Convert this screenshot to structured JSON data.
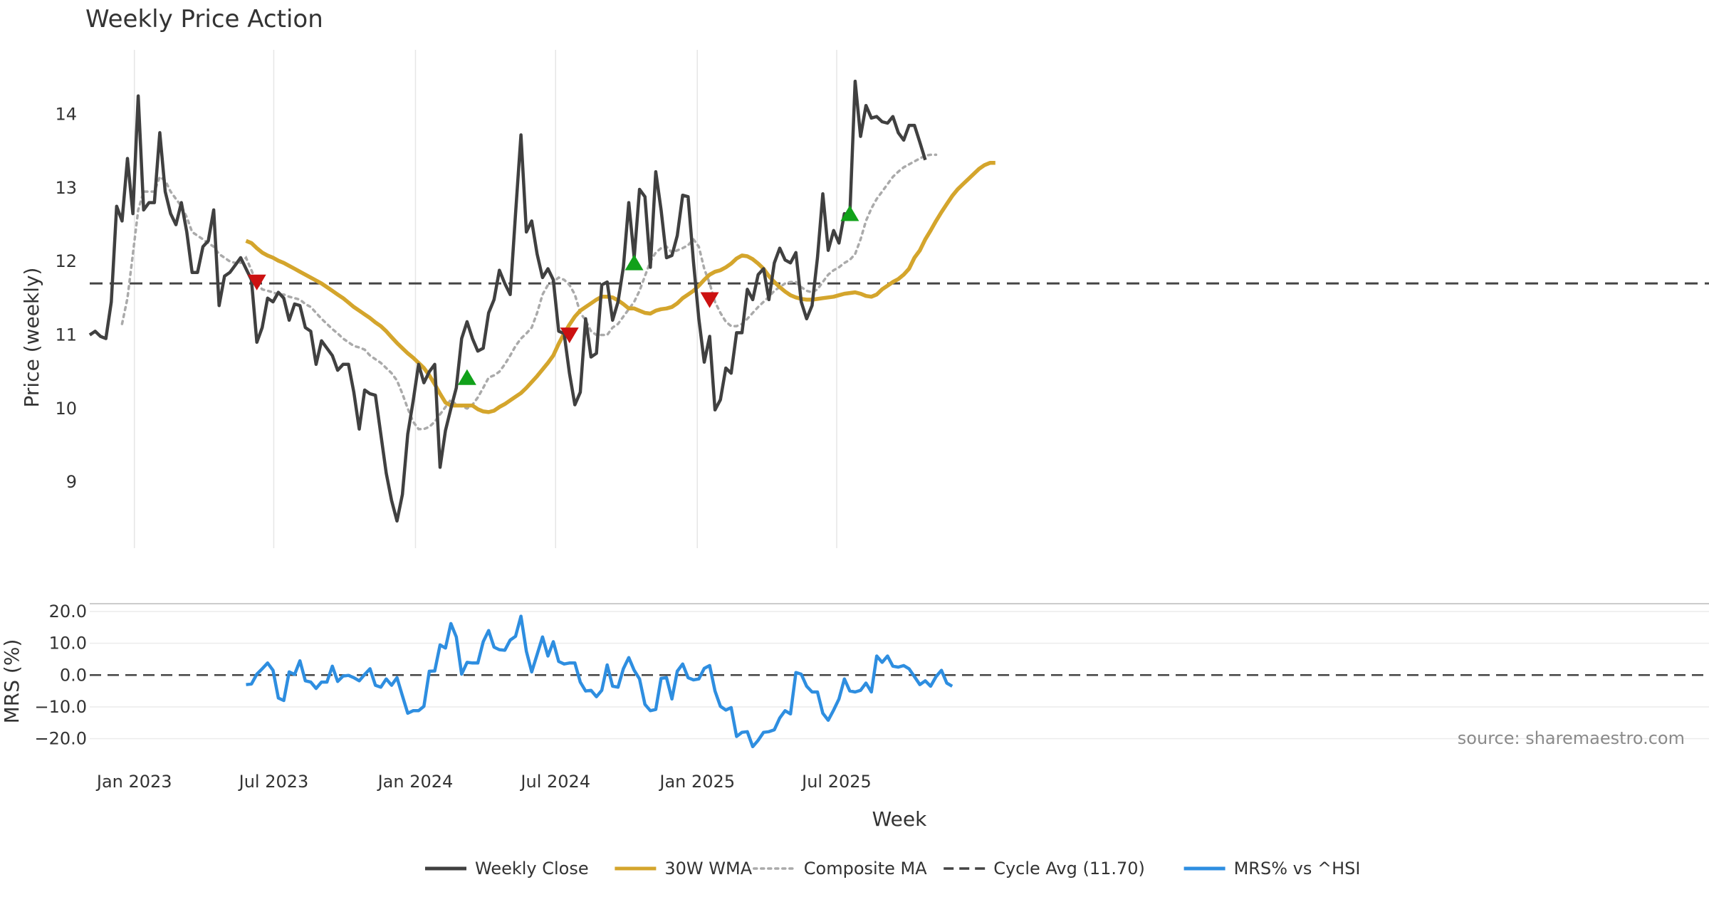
{
  "chart_data": [
    {
      "type": "line",
      "title": "Weekly Price Action",
      "xlabel": "",
      "ylabel": "Price (weekly)",
      "ylim": [
        8.1,
        14.8
      ],
      "yticks": [
        9,
        10,
        11,
        12,
        13,
        14
      ],
      "grid": "vertical",
      "x_start": "2022-11-04",
      "x_step_days": 7,
      "series": [
        {
          "name": "Weekly Close",
          "color": "#404040",
          "values": [
            11.0,
            11.05,
            10.98,
            10.95,
            11.45,
            12.75,
            12.55,
            13.4,
            12.65,
            14.25,
            12.7,
            12.8,
            12.8,
            13.75,
            12.95,
            12.65,
            12.5,
            12.8,
            12.4,
            11.85,
            11.85,
            12.2,
            12.28,
            12.7,
            11.4,
            11.8,
            11.85,
            11.95,
            12.05,
            11.9,
            11.75,
            10.9,
            11.1,
            11.5,
            11.45,
            11.58,
            11.5,
            11.2,
            11.42,
            11.4,
            11.1,
            11.05,
            10.6,
            10.92,
            10.82,
            10.72,
            10.52,
            10.6,
            10.6,
            10.22,
            9.72,
            10.25,
            10.2,
            10.18,
            9.65,
            9.12,
            8.75,
            8.47,
            8.83,
            9.65,
            10.1,
            10.6,
            10.35,
            10.5,
            10.6,
            9.2,
            9.7,
            10.0,
            10.28,
            10.95,
            11.18,
            10.95,
            10.78,
            10.82,
            11.3,
            11.48,
            11.88,
            11.7,
            11.55,
            12.65,
            13.72,
            12.4,
            12.55,
            12.1,
            11.78,
            11.9,
            11.75,
            11.05,
            11.02,
            10.48,
            10.05,
            10.22,
            11.22,
            10.7,
            10.75,
            11.68,
            11.72,
            11.2,
            11.45,
            11.92,
            12.8,
            12.05,
            12.98,
            12.88,
            11.92,
            13.22,
            12.7,
            12.05,
            12.08,
            12.35,
            12.9,
            12.88,
            12.0,
            11.22,
            10.63,
            10.98,
            9.98,
            10.12,
            10.55,
            10.48,
            11.03,
            11.03,
            11.62,
            11.48,
            11.82,
            11.9,
            11.48,
            11.98,
            12.18,
            12.02,
            11.98,
            12.12,
            11.45,
            11.22,
            11.4,
            12.05,
            12.92,
            12.15,
            12.42,
            12.25,
            12.65,
            12.62,
            14.45,
            13.7,
            14.12,
            13.95,
            13.97,
            13.9,
            13.88,
            13.97,
            13.75,
            13.65,
            13.85,
            13.85,
            13.62,
            13.38
          ]
        },
        {
          "name": "30W WMA",
          "color": "#d4a52c",
          "values": [
            null,
            null,
            null,
            null,
            null,
            null,
            null,
            null,
            null,
            null,
            null,
            null,
            null,
            null,
            null,
            null,
            null,
            null,
            null,
            null,
            null,
            null,
            null,
            null,
            null,
            null,
            null,
            null,
            null,
            12.28,
            12.25,
            12.18,
            12.12,
            12.08,
            12.05,
            12.01,
            11.98,
            11.94,
            11.9,
            11.86,
            11.82,
            11.78,
            11.74,
            11.7,
            11.65,
            11.6,
            11.55,
            11.5,
            11.44,
            11.38,
            11.33,
            11.28,
            11.23,
            11.17,
            11.12,
            11.05,
            10.97,
            10.89,
            10.82,
            10.75,
            10.69,
            10.62,
            10.55,
            10.45,
            10.33,
            10.2,
            10.08,
            10.04,
            10.04,
            10.04,
            10.04,
            10.04,
            9.99,
            9.96,
            9.95,
            9.97,
            10.02,
            10.06,
            10.11,
            10.16,
            10.21,
            10.28,
            10.36,
            10.44,
            10.53,
            10.62,
            10.72,
            10.88,
            11.02,
            11.14,
            11.25,
            11.33,
            11.38,
            11.43,
            11.48,
            11.52,
            11.52,
            11.51,
            11.47,
            11.42,
            11.36,
            11.36,
            11.33,
            11.3,
            11.29,
            11.33,
            11.35,
            11.36,
            11.38,
            11.43,
            11.5,
            11.55,
            11.6,
            11.67,
            11.75,
            11.82,
            11.86,
            11.88,
            11.92,
            11.97,
            12.04,
            12.08,
            12.07,
            12.03,
            11.97,
            11.9,
            11.8,
            11.72,
            11.65,
            11.59,
            11.54,
            11.51,
            11.49,
            11.48,
            11.48,
            11.49,
            11.5,
            11.51,
            11.52,
            11.54,
            11.56,
            11.57,
            11.58,
            11.56,
            11.53,
            11.52,
            11.55,
            11.62,
            11.67,
            11.72,
            11.76,
            11.82,
            11.9,
            12.05,
            12.15,
            12.3,
            12.42,
            12.55,
            12.67,
            12.78,
            12.89,
            12.98,
            13.05,
            13.12,
            13.19,
            13.26,
            13.31,
            13.34,
            13.34
          ]
        },
        {
          "name": "Composite MA",
          "color": "#aaaaaa",
          "values": [
            null,
            null,
            null,
            null,
            null,
            null,
            11.15,
            11.5,
            12.1,
            12.7,
            12.95,
            12.95,
            12.95,
            13.15,
            13.1,
            12.95,
            12.85,
            12.75,
            12.6,
            12.4,
            12.35,
            12.3,
            12.25,
            12.2,
            12.1,
            12.05,
            12.0,
            11.98,
            11.98,
            12.05,
            11.88,
            11.7,
            11.62,
            11.6,
            11.58,
            11.55,
            11.55,
            11.52,
            11.5,
            11.48,
            11.42,
            11.38,
            11.3,
            11.22,
            11.15,
            11.08,
            11.02,
            10.95,
            10.9,
            10.85,
            10.83,
            10.8,
            10.72,
            10.67,
            10.62,
            10.55,
            10.48,
            10.38,
            10.2,
            10.0,
            9.82,
            9.72,
            9.72,
            9.75,
            9.82,
            9.92,
            10.02,
            10.12,
            10.05,
            10.03,
            10.0,
            10.05,
            10.15,
            10.28,
            10.42,
            10.45,
            10.5,
            10.6,
            10.72,
            10.85,
            10.95,
            11.02,
            11.1,
            11.3,
            11.55,
            11.68,
            11.72,
            11.78,
            11.75,
            11.68,
            11.55,
            11.3,
            11.2,
            11.05,
            11.0,
            11.0,
            11.0,
            11.1,
            11.15,
            11.25,
            11.35,
            11.45,
            11.6,
            11.8,
            12.0,
            12.12,
            12.18,
            12.2,
            12.12,
            12.15,
            12.18,
            12.22,
            12.3,
            12.2,
            11.9,
            11.7,
            11.45,
            11.3,
            11.18,
            11.12,
            11.12,
            11.15,
            11.22,
            11.3,
            11.38,
            11.45,
            11.52,
            11.6,
            11.65,
            11.7,
            11.72,
            11.72,
            11.65,
            11.6,
            11.58,
            11.62,
            11.72,
            11.82,
            11.88,
            11.92,
            11.98,
            12.02,
            12.1,
            12.3,
            12.55,
            12.72,
            12.85,
            12.95,
            13.05,
            13.15,
            13.22,
            13.28,
            13.32,
            13.36,
            13.4,
            13.44,
            13.45,
            13.45
          ]
        },
        {
          "name": "Cycle Avg (11.70)",
          "color": "#444444",
          "constant": 11.7
        }
      ],
      "markers": [
        {
          "type": "sell",
          "color": "#cc1111",
          "week_index": 31,
          "value": 11.72
        },
        {
          "type": "buy",
          "color": "#11a11a",
          "week_index": 70,
          "value": 10.42
        },
        {
          "type": "sell",
          "color": "#cc1111",
          "week_index": 89,
          "value": 11.0
        },
        {
          "type": "buy",
          "color": "#11a11a",
          "week_index": 101,
          "value": 11.98
        },
        {
          "type": "sell",
          "color": "#cc1111",
          "week_index": 115,
          "value": 11.48
        },
        {
          "type": "buy",
          "color": "#11a11a",
          "week_index": 141,
          "value": 12.65
        }
      ]
    },
    {
      "type": "line",
      "title": "",
      "xlabel": "Week",
      "ylabel": "MRS (%)",
      "ylim": [
        -25,
        22
      ],
      "yticks": [
        -20.0,
        -10.0,
        0.0,
        10.0,
        20.0
      ],
      "ytick_labels": [
        "−20.0",
        "−10.0",
        "0.0",
        "10.0",
        "20.0"
      ],
      "xtick_labels": [
        "Jan 2023",
        "Jul 2023",
        "Jan 2024",
        "Jul 2024",
        "Jan 2025",
        "Jul 2025"
      ],
      "xtick_dates": [
        "2023-01-01",
        "2023-07-01",
        "2024-01-01",
        "2024-07-01",
        "2025-01-01",
        "2025-07-01"
      ],
      "grid": "horizontal",
      "x_start": "2022-11-04",
      "x_step_days": 7,
      "series": [
        {
          "name": "MRS% vs ^HSI",
          "color": "#2e8ee0",
          "start_index": 29,
          "values": [
            -3,
            -2.8,
            0.3,
            2,
            3.8,
            1.5,
            -7.2,
            -8,
            1,
            0.2,
            4.5,
            -1.8,
            -2.2,
            -4.2,
            -2.2,
            -2.2,
            2.8,
            -2,
            -0.3,
            -0.1,
            -0.8,
            -1.8,
            0.2,
            2,
            -3.2,
            -3.8,
            -1.2,
            -3.2,
            -0.8,
            -6.5,
            -12,
            -11.2,
            -11.2,
            -9.8,
            1.2,
            1.3,
            9.5,
            8.5,
            16.2,
            12,
            0.3,
            4,
            3.8,
            3.8,
            10.5,
            14,
            8.8,
            8,
            7.8,
            11,
            12.2,
            18.5,
            7.5,
            1,
            6.5,
            12,
            6,
            10.5,
            4.3,
            3.5,
            3.8,
            3.8,
            -2.2,
            -5,
            -4.8,
            -6.8,
            -4.8,
            3.2,
            -3.5,
            -3.8,
            2,
            5.5,
            1.5,
            -1.2,
            -9.2,
            -11.2,
            -10.8,
            -1,
            -0.8,
            -7.5,
            1.2,
            3.5,
            -0.8,
            -1.5,
            -1.2,
            2.1,
            3,
            -5,
            -9.8,
            -11,
            -10.2,
            -19.3,
            -18,
            -17.8,
            -22.5,
            -20.5,
            -18,
            -17.8,
            -17.2,
            -13.5,
            -11.2,
            -12.2,
            0.8,
            0.3,
            -3.5,
            -5.3,
            -5.3,
            -12,
            -14.2,
            -11,
            -7.5,
            -1.2,
            -5,
            -5.3,
            -4.8,
            -2.5,
            -5.3,
            6,
            4,
            6,
            2.8,
            2.5,
            3,
            2,
            -0.5,
            -3,
            -1.8,
            -3.5,
            -0.5,
            1.5,
            -2.5,
            -3.5
          ]
        },
        {
          "name": "zero",
          "color": "#444444",
          "constant": 0
        }
      ]
    }
  ],
  "legend": {
    "placement": "bottom-center",
    "items": [
      {
        "label": "Weekly Close",
        "style": "solid",
        "color": "#404040"
      },
      {
        "label": "30W WMA",
        "style": "solid",
        "color": "#d4a52c"
      },
      {
        "label": "Composite MA",
        "style": "dotted",
        "color": "#aaaaaa"
      },
      {
        "label": "Cycle Avg (11.70)",
        "style": "dashed",
        "color": "#444444"
      },
      {
        "label": "MRS% vs ^HSI",
        "style": "solid",
        "color": "#2e8ee0"
      }
    ]
  },
  "source": "source: sharemaestro.com"
}
